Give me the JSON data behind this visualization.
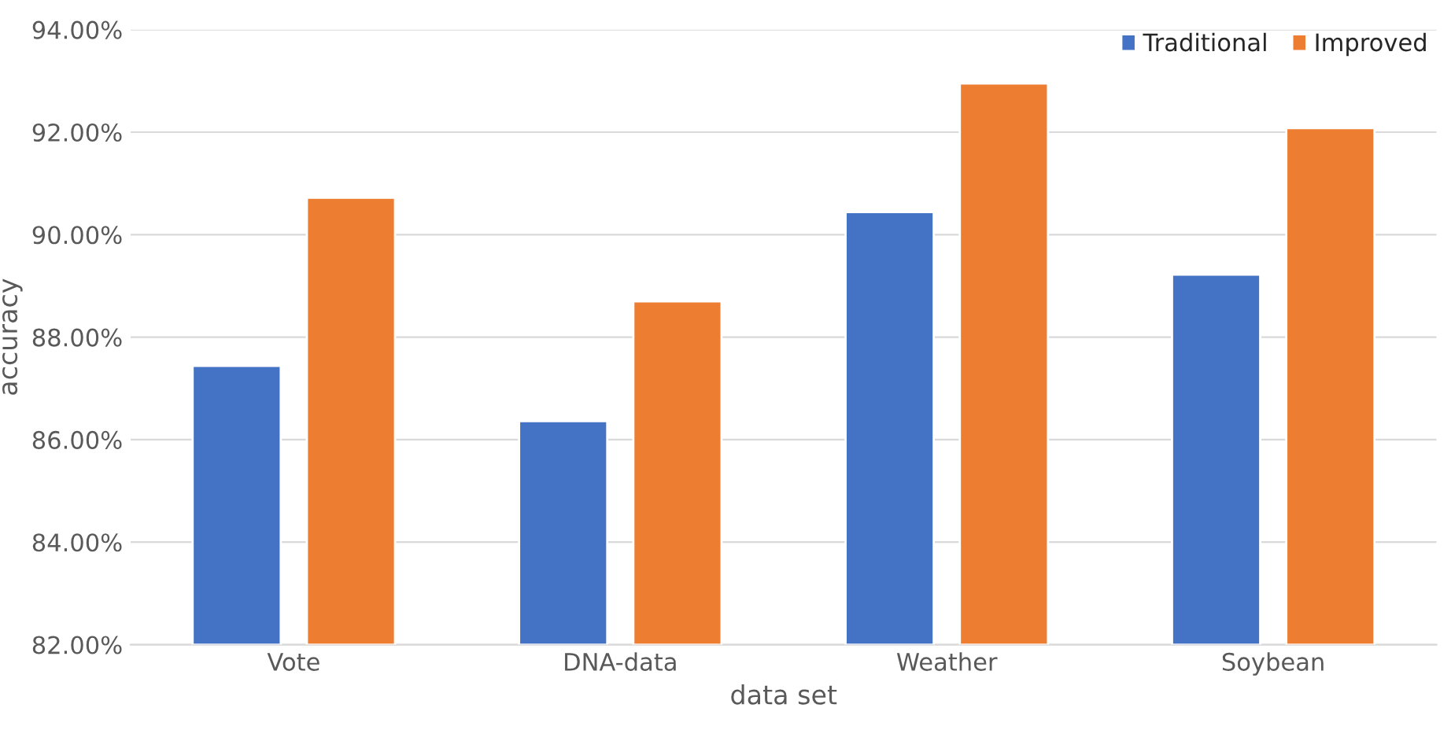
{
  "chart_data": {
    "type": "bar",
    "xlabel": "data set",
    "ylabel": "accuracy",
    "categories": [
      "Vote",
      "DNA-data",
      "Weather",
      "Soybean"
    ],
    "series": [
      {
        "name": "Traditional",
        "color": "#4472c4",
        "values": [
          87.44,
          86.36,
          90.44,
          89.22
        ]
      },
      {
        "name": "Improved",
        "color": "#ed7d31",
        "values": [
          90.72,
          88.7,
          92.95,
          92.08
        ]
      }
    ],
    "ylim": [
      82,
      94
    ],
    "yticks": [
      {
        "value": 82,
        "label": "82.00%"
      },
      {
        "value": 84,
        "label": "84.00%"
      },
      {
        "value": 86,
        "label": "86.00%"
      },
      {
        "value": 88,
        "label": "88.00%"
      },
      {
        "value": 90,
        "label": "90.00%"
      },
      {
        "value": 92,
        "label": "92.00%"
      },
      {
        "value": 94,
        "label": "94.00%"
      }
    ],
    "grid": "y",
    "legend": "top right"
  }
}
